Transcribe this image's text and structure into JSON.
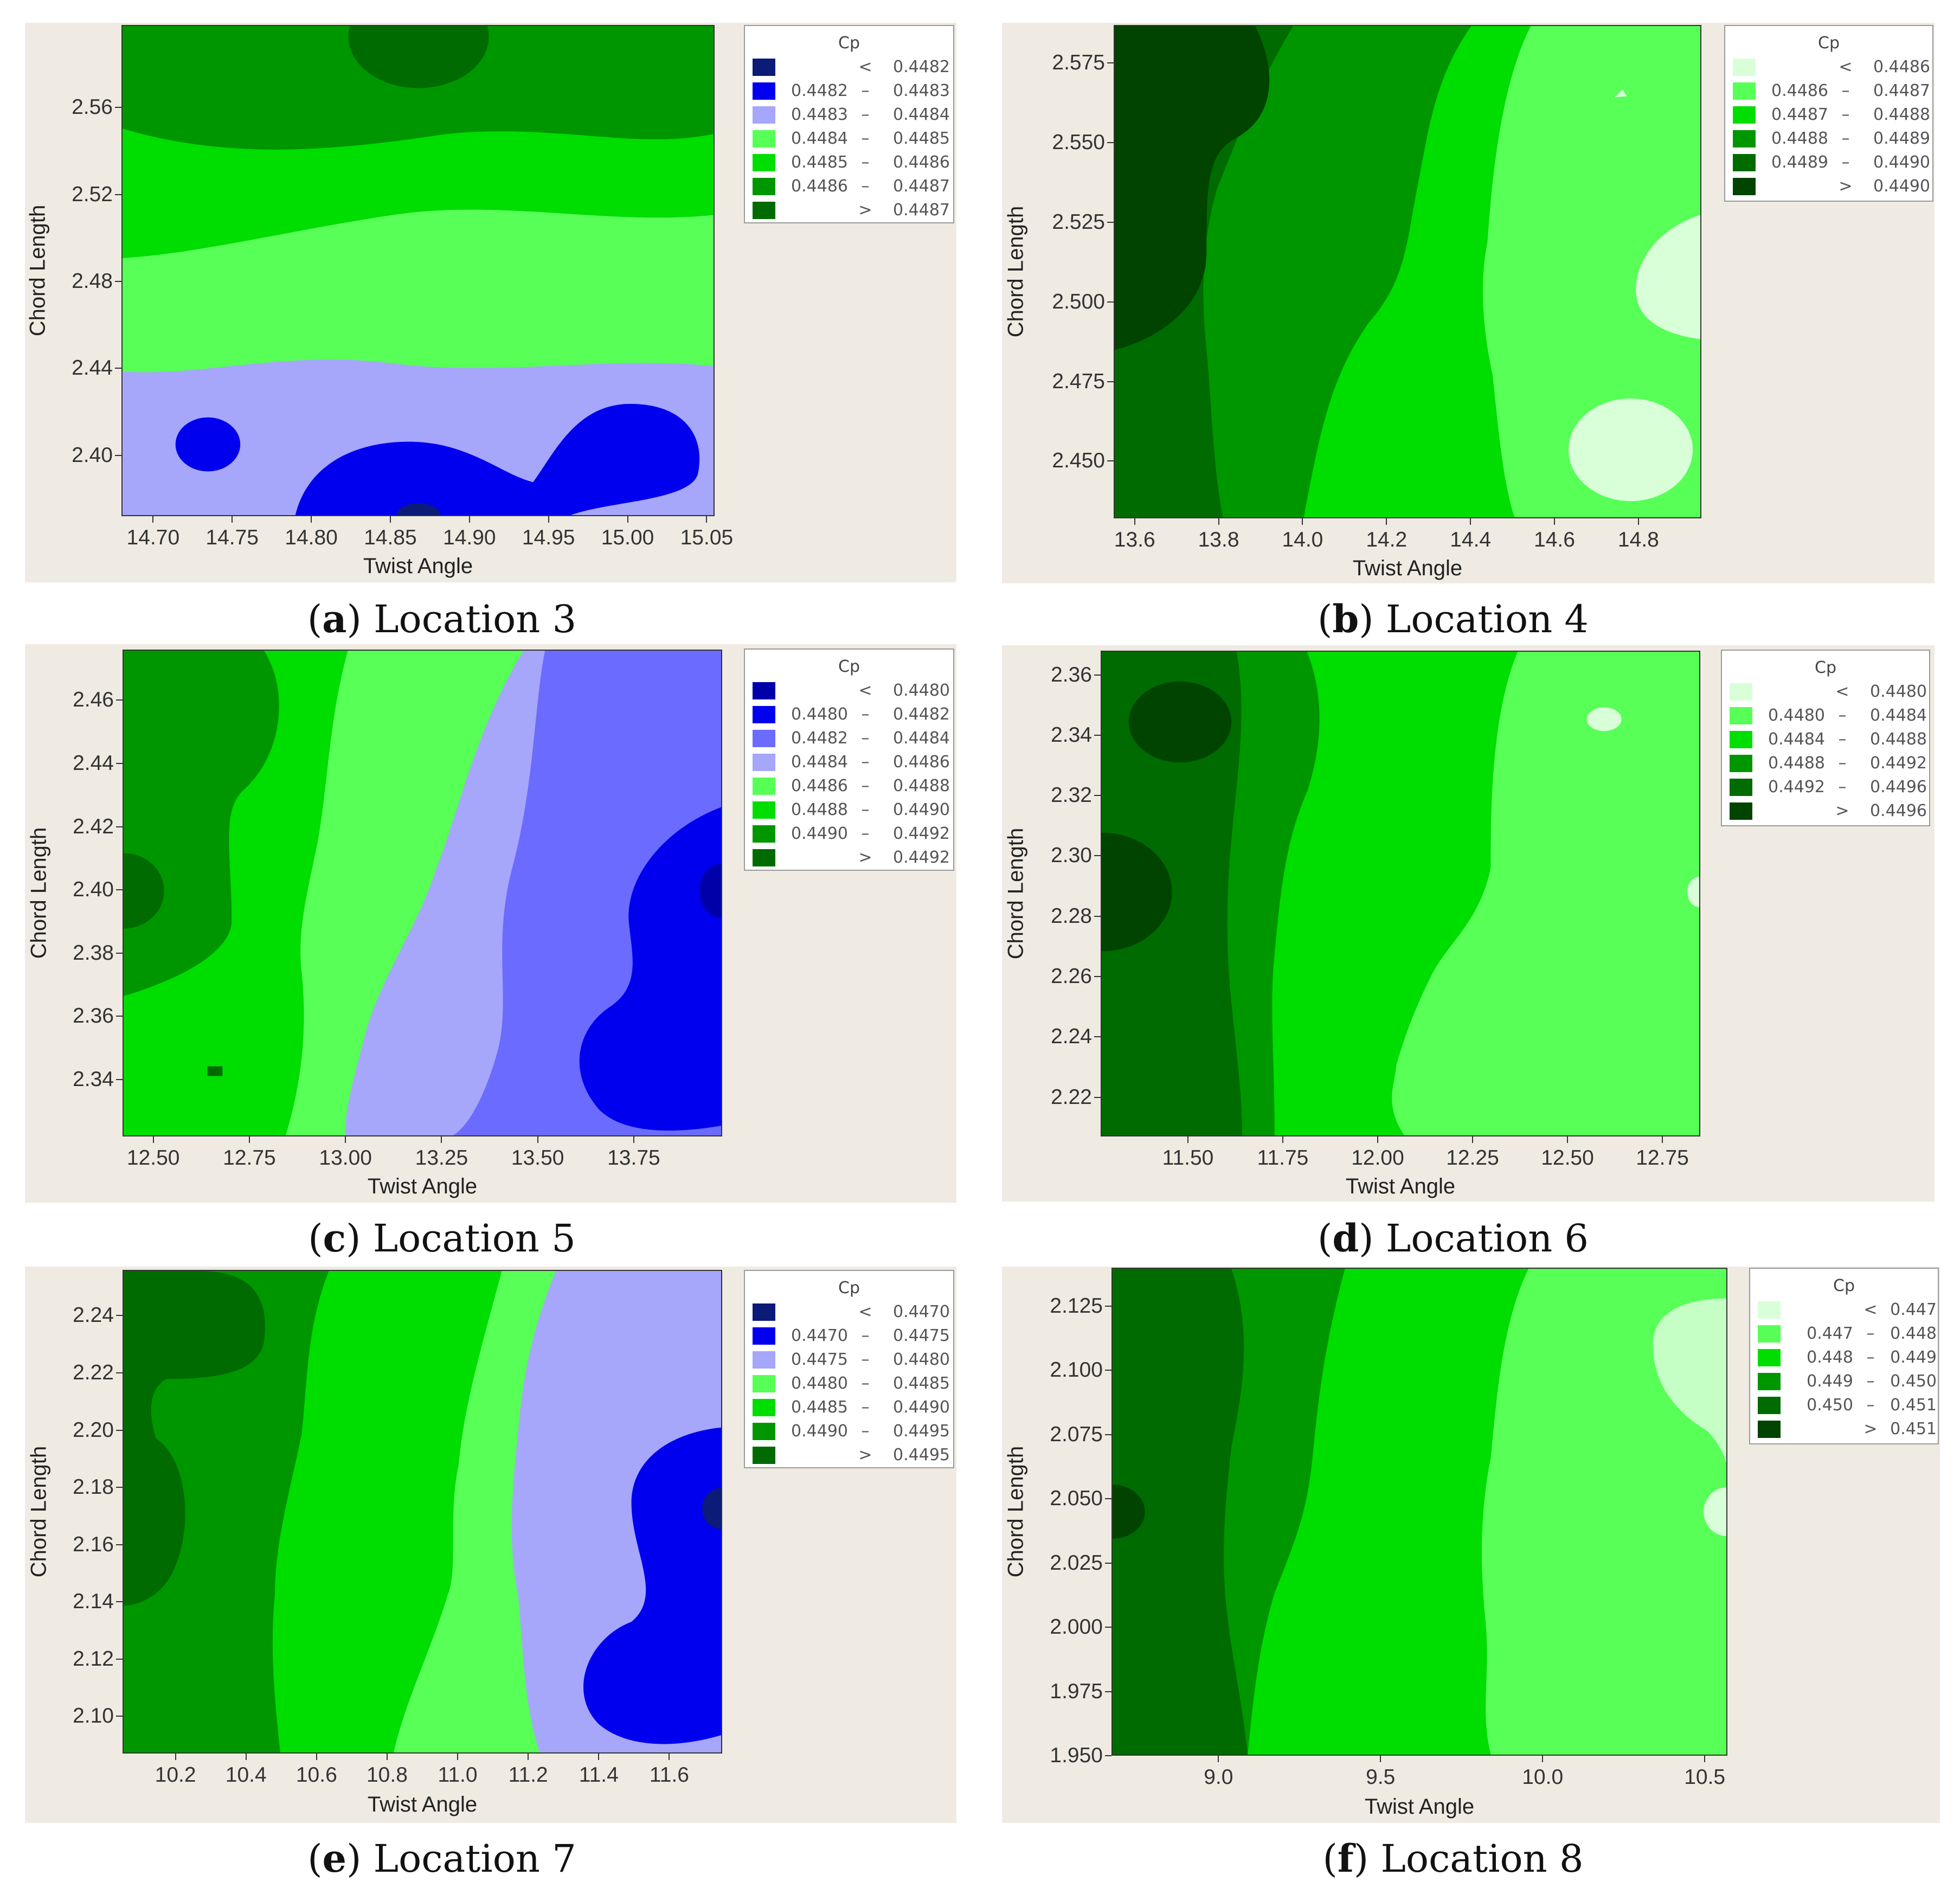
{
  "chart_data": [
    {
      "type": "contour",
      "panel_letter": "a",
      "caption": "Location 3",
      "xlabel": "Twist Angle",
      "ylabel": "Chord Length",
      "xlim": [
        14.68,
        15.055
      ],
      "ylim": [
        2.372,
        2.598
      ],
      "xticks": [
        "14.70",
        "14.75",
        "14.80",
        "14.85",
        "14.90",
        "14.95",
        "15.00",
        "15.05"
      ],
      "yticks": [
        "2.40",
        "2.44",
        "2.48",
        "2.52",
        "2.56"
      ],
      "legend": {
        "title": "Cp",
        "entries": [
          {
            "op": "<",
            "lo": "",
            "hi": "0.4482",
            "color": "#0c1a78"
          },
          {
            "op": "–",
            "lo": "0.4482",
            "hi": "0.4483",
            "color": "#0000ee"
          },
          {
            "op": "–",
            "lo": "0.4483",
            "hi": "0.4484",
            "color": "#a6a6fb"
          },
          {
            "op": "–",
            "lo": "0.4484",
            "hi": "0.4485",
            "color": "#57ff57"
          },
          {
            "op": "–",
            "lo": "0.4485",
            "hi": "0.4486",
            "color": "#00dd00"
          },
          {
            "op": "–",
            "lo": "0.4486",
            "hi": "0.4487",
            "color": "#009600"
          },
          {
            "op": ">",
            "lo": "",
            "hi": "0.4487",
            "color": "#006b00"
          }
        ]
      }
    },
    {
      "type": "contour",
      "panel_letter": "b",
      "caption": "Location 4",
      "xlabel": "Twist Angle",
      "ylabel": "Chord Length",
      "xlim": [
        13.55,
        14.95
      ],
      "ylim": [
        2.432,
        2.587
      ],
      "xticks": [
        "13.6",
        "13.8",
        "14.0",
        "14.2",
        "14.4",
        "14.6",
        "14.8"
      ],
      "yticks": [
        "2.575",
        "2.550",
        "2.525",
        "2.500",
        "2.475",
        "2.450"
      ],
      "legend": {
        "title": "Cp",
        "entries": [
          {
            "op": "<",
            "lo": "",
            "hi": "0.4486",
            "color": "#d9ffd9"
          },
          {
            "op": "–",
            "lo": "0.4486",
            "hi": "0.4487",
            "color": "#57ff57"
          },
          {
            "op": "–",
            "lo": "0.4487",
            "hi": "0.4488",
            "color": "#00dd00"
          },
          {
            "op": "–",
            "lo": "0.4488",
            "hi": "0.4489",
            "color": "#009600"
          },
          {
            "op": "–",
            "lo": "0.4489",
            "hi": "0.4490",
            "color": "#006b00"
          },
          {
            "op": ">",
            "lo": "",
            "hi": "0.4490",
            "color": "#004400"
          }
        ]
      }
    },
    {
      "type": "contour",
      "panel_letter": "c",
      "caption": "Location 5",
      "xlabel": "Twist Angle",
      "ylabel": "Chord Length",
      "xlim": [
        12.42,
        13.98
      ],
      "ylim": [
        2.322,
        2.476
      ],
      "xticks": [
        "12.50",
        "12.75",
        "13.00",
        "13.25",
        "13.50",
        "13.75"
      ],
      "yticks": [
        "2.46",
        "2.44",
        "2.42",
        "2.40",
        "2.38",
        "2.36",
        "2.34"
      ],
      "legend": {
        "title": "Cp",
        "entries": [
          {
            "op": "<",
            "lo": "",
            "hi": "0.4480",
            "color": "#0000aa"
          },
          {
            "op": "–",
            "lo": "0.4480",
            "hi": "0.4482",
            "color": "#0000ee"
          },
          {
            "op": "–",
            "lo": "0.4482",
            "hi": "0.4484",
            "color": "#6b6bff"
          },
          {
            "op": "–",
            "lo": "0.4484",
            "hi": "0.4486",
            "color": "#a6a6fb"
          },
          {
            "op": "–",
            "lo": "0.4486",
            "hi": "0.4488",
            "color": "#57ff57"
          },
          {
            "op": "–",
            "lo": "0.4488",
            "hi": "0.4490",
            "color": "#00dd00"
          },
          {
            "op": "–",
            "lo": "0.4490",
            "hi": "0.4492",
            "color": "#009600"
          },
          {
            "op": ">",
            "lo": "",
            "hi": "0.4492",
            "color": "#006b00"
          }
        ]
      }
    },
    {
      "type": "contour",
      "panel_letter": "d",
      "caption": "Location 6",
      "xlabel": "Twist Angle",
      "ylabel": "Chord Length",
      "xlim": [
        11.27,
        12.85
      ],
      "ylim": [
        2.207,
        2.368
      ],
      "xticks": [
        "11.50",
        "11.75",
        "12.00",
        "12.25",
        "12.50",
        "12.75"
      ],
      "yticks": [
        "2.36",
        "2.34",
        "2.32",
        "2.30",
        "2.28",
        "2.26",
        "2.24",
        "2.22"
      ],
      "legend": {
        "title": "Cp",
        "entries": [
          {
            "op": "<",
            "lo": "",
            "hi": "0.4480",
            "color": "#d9ffd9"
          },
          {
            "op": "–",
            "lo": "0.4480",
            "hi": "0.4484",
            "color": "#57ff57"
          },
          {
            "op": "–",
            "lo": "0.4484",
            "hi": "0.4488",
            "color": "#00dd00"
          },
          {
            "op": "–",
            "lo": "0.4488",
            "hi": "0.4492",
            "color": "#009600"
          },
          {
            "op": "–",
            "lo": "0.4492",
            "hi": "0.4496",
            "color": "#006b00"
          },
          {
            "op": ">",
            "lo": "",
            "hi": "0.4496",
            "color": "#004400"
          }
        ]
      }
    },
    {
      "type": "contour",
      "panel_letter": "e",
      "caption": "Location 7",
      "xlabel": "Twist Angle",
      "ylabel": "Chord Length",
      "xlim": [
        10.05,
        11.75
      ],
      "ylim": [
        2.087,
        2.256
      ],
      "xticks": [
        "10.2",
        "10.4",
        "10.6",
        "10.8",
        "11.0",
        "11.2",
        "11.4",
        "11.6"
      ],
      "yticks": [
        "2.24",
        "2.22",
        "2.20",
        "2.18",
        "2.16",
        "2.14",
        "2.12",
        "2.10"
      ],
      "legend": {
        "title": "Cp",
        "entries": [
          {
            "op": "<",
            "lo": "",
            "hi": "0.4470",
            "color": "#0c1a78"
          },
          {
            "op": "–",
            "lo": "0.4470",
            "hi": "0.4475",
            "color": "#0000ee"
          },
          {
            "op": "–",
            "lo": "0.4475",
            "hi": "0.4480",
            "color": "#a6a6fb"
          },
          {
            "op": "–",
            "lo": "0.4480",
            "hi": "0.4485",
            "color": "#57ff57"
          },
          {
            "op": "–",
            "lo": "0.4485",
            "hi": "0.4490",
            "color": "#00dd00"
          },
          {
            "op": "–",
            "lo": "0.4490",
            "hi": "0.4495",
            "color": "#009600"
          },
          {
            "op": ">",
            "lo": "",
            "hi": "0.4495",
            "color": "#006b00"
          }
        ]
      }
    },
    {
      "type": "contour",
      "panel_letter": "f",
      "caption": "Location 8",
      "xlabel": "Twist Angle",
      "ylabel": "Chord Length",
      "xlim": [
        8.67,
        10.57
      ],
      "ylim": [
        1.95,
        2.14
      ],
      "xticks": [
        "9.0",
        "9.5",
        "10.0",
        "10.5"
      ],
      "yticks": [
        "2.125",
        "2.100",
        "2.075",
        "2.050",
        "2.025",
        "2.000",
        "1.975",
        "1.950"
      ],
      "legend": {
        "title": "Cp",
        "entries": [
          {
            "op": "<",
            "lo": "",
            "hi": "0.447",
            "color": "#d9ffd9"
          },
          {
            "op": "–",
            "lo": "0.447",
            "hi": "0.448",
            "color": "#57ff57"
          },
          {
            "op": "–",
            "lo": "0.448",
            "hi": "0.449",
            "color": "#00dd00"
          },
          {
            "op": "–",
            "lo": "0.449",
            "hi": "0.450",
            "color": "#009600"
          },
          {
            "op": "–",
            "lo": "0.450",
            "hi": "0.451",
            "color": "#006b00"
          },
          {
            "op": ">",
            "lo": "",
            "hi": "0.451",
            "color": "#004400"
          }
        ]
      }
    }
  ]
}
